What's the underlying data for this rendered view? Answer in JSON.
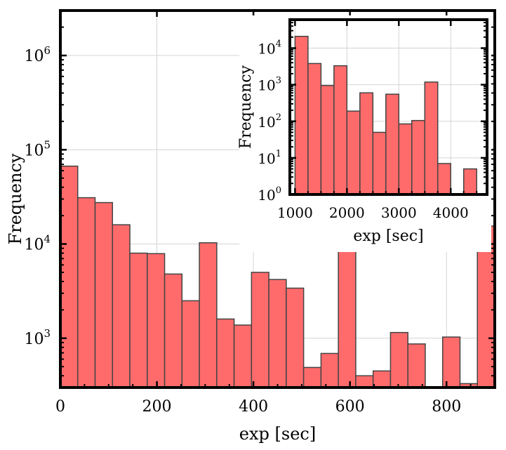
{
  "chart_data": [
    {
      "type": "bar",
      "panel": "main",
      "xlabel": "exp [sec]",
      "ylabel": "Frequency",
      "yscale": "log",
      "xlim": [
        0,
        900
      ],
      "ylim": [
        300,
        3000000
      ],
      "xticks": [
        0,
        200,
        400,
        600,
        800
      ],
      "xtick_labels": [
        "0",
        "200",
        "400",
        "600",
        "800"
      ],
      "yticks": [
        1000,
        10000,
        100000,
        1000000
      ],
      "ytick_labels": [
        {
          "base": "10",
          "exp": "3"
        },
        {
          "base": "10",
          "exp": "4"
        },
        {
          "base": "10",
          "exp": "5"
        },
        {
          "base": "10",
          "exp": "6"
        }
      ],
      "grid": true,
      "bin_width": 36,
      "bin_edges_start": 0,
      "values": [
        67000,
        31000,
        27500,
        16000,
        8000,
        7900,
        4800,
        2500,
        10300,
        1600,
        1380,
        5000,
        4200,
        3400,
        490,
        690,
        12800,
        400,
        450,
        1150,
        870,
        0,
        1030,
        330,
        15500
      ],
      "bar_color": "#ff6b6b",
      "edge_color": "#444444"
    },
    {
      "type": "bar",
      "panel": "inset",
      "xlabel": "exp [sec]",
      "ylabel": "Frequency",
      "yscale": "log",
      "xlim": [
        900,
        4700
      ],
      "ylim": [
        1,
        60000
      ],
      "xticks": [
        1000,
        2000,
        3000,
        4000
      ],
      "xtick_labels": [
        "1000",
        "2000",
        "3000",
        "4000"
      ],
      "yticks": [
        1,
        10,
        100,
        1000,
        10000
      ],
      "ytick_labels": [
        {
          "base": "10",
          "exp": "0"
        },
        {
          "base": "10",
          "exp": "1"
        },
        {
          "base": "10",
          "exp": "2"
        },
        {
          "base": "10",
          "exp": "3"
        },
        {
          "base": "10",
          "exp": "4"
        }
      ],
      "grid": true,
      "bin_width": 250,
      "bin_edges_start": 1000,
      "values": [
        21000,
        3800,
        950,
        3300,
        190,
        600,
        50,
        550,
        85,
        105,
        1180,
        7,
        0,
        5
      ],
      "bar_color": "#ff6b6b",
      "edge_color": "#444444"
    }
  ]
}
